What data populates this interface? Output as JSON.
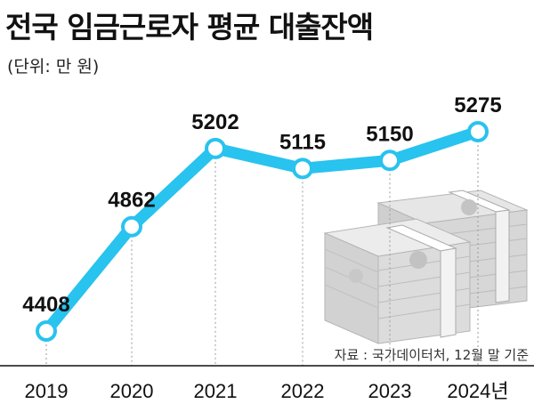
{
  "title": "전국 임금근로자 평균 대출잔액",
  "unit_label": "(단위: 만 원)",
  "source": "자료 : 국가데이터처, 12월 말 기준",
  "colors": {
    "line": "#28c3ee",
    "axis": "#111111",
    "guide": "#9a9a9a"
  },
  "chart_data": {
    "type": "line",
    "title": "전국 임금근로자 평균 대출잔액",
    "ylabel": "(단위: 만 원)",
    "xlabel": "",
    "categories": [
      "2019",
      "2020",
      "2021",
      "2022",
      "2023",
      "2024년"
    ],
    "series": [
      {
        "values": [
          4408,
          4862,
          5202,
          5115,
          5150,
          5275
        ]
      }
    ],
    "data_labels": [
      "4408",
      "4862",
      "5202",
      "5115",
      "5150",
      "5275"
    ],
    "ylim": [
      4300,
      5350
    ],
    "grid": false,
    "decoration": "stacked-banknotes-illustration"
  }
}
